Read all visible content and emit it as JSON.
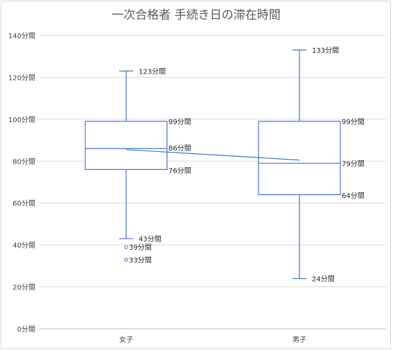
{
  "chart_data": {
    "type": "box",
    "title": "一次合格者 手続き日の滞在時間",
    "ylim": [
      0,
      140
    ],
    "yticks": [
      0,
      20,
      40,
      60,
      80,
      100,
      120,
      140
    ],
    "ytick_labels": [
      "0分間",
      "20分間",
      "40分間",
      "60分間",
      "80分間",
      "100分間",
      "120分間",
      "140分間"
    ],
    "grid": true,
    "categories": [
      "女子",
      "男子"
    ],
    "boxes": [
      {
        "category": "女子",
        "whisker_min": 43,
        "q1": 76,
        "median": 86,
        "q3": 99,
        "whisker_max": 123,
        "mean": 85.5,
        "outliers": [
          39,
          33
        ],
        "labels": {
          "whisker_max": "123分間",
          "q3": "99分間",
          "median": "86分間",
          "q1": "76分間",
          "whisker_min": "43分間",
          "outliers": [
            "39分間",
            "33分間"
          ]
        }
      },
      {
        "category": "男子",
        "whisker_min": 24,
        "q1": 64,
        "median": 79,
        "q3": 99,
        "whisker_max": 133,
        "mean": 80.5,
        "outliers": [],
        "labels": {
          "whisker_max": "133分間",
          "q3": "99分間",
          "median": "79分間",
          "q1": "64分間",
          "whisker_min": "24分間",
          "outliers": []
        }
      }
    ],
    "mean_line": true,
    "colors": {
      "box": "#4472c4",
      "grid": "#d9d9d9",
      "axis": "#bfbfbf"
    }
  }
}
